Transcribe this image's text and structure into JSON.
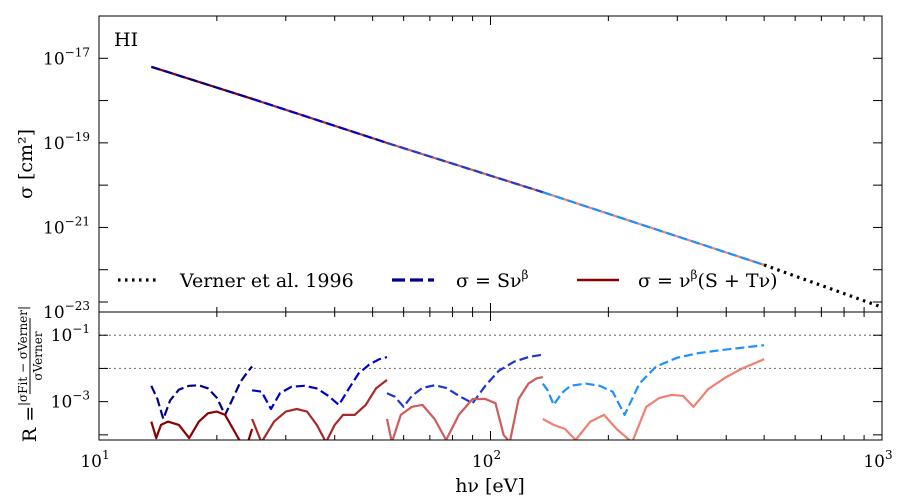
{
  "chart_data": [
    {
      "type": "line",
      "panel": "top",
      "annotation": "HI",
      "ylabel": "σ  [cm²]",
      "xscale": "log",
      "yscale": "log",
      "xlim": [
        10,
        1000
      ],
      "ylim": [
        1e-23,
        1e-16
      ],
      "yticks": [
        {
          "base": "10",
          "exp": "−17",
          "value": 1e-17
        },
        {
          "base": "10",
          "exp": "−19",
          "value": 1e-19
        },
        {
          "base": "10",
          "exp": "−21",
          "value": 1e-21
        },
        {
          "base": "10",
          "exp": "−23",
          "value": 1e-23
        }
      ],
      "legend": [
        {
          "label": "Verner et al. 1996",
          "style": "dotted",
          "color": "#000000"
        },
        {
          "label": "σ = Sν",
          "sup": "β",
          "style": "dashed",
          "color": "#00008b"
        },
        {
          "label": "σ = ν",
          "sup": "β",
          "rest": "(S + Tν)",
          "style": "solid",
          "color": "#8b0000"
        }
      ],
      "series": [
        {
          "name": "Verner et al. 1996",
          "style": "dotted",
          "color": "#000000",
          "x": [
            500,
            1000
          ],
          "y": [
            1.3e-22,
            1.3e-23
          ]
        },
        {
          "name": "fit 1 dashed",
          "style": "dashed",
          "color": "#00008b",
          "x": [
            13.6,
            24.6
          ],
          "y": [
            6.3e-18,
            1.1e-18
          ]
        },
        {
          "name": "fit 2 dashed",
          "style": "dashed",
          "color": "#0000cd",
          "x": [
            24.6,
            54.4
          ],
          "y": [
            1.1e-18,
            1e-19
          ]
        },
        {
          "name": "fit 3 dashed",
          "style": "dashed",
          "color": "#1e3ccd",
          "x": [
            54.4,
            136
          ],
          "y": [
            1e-19,
            6.8e-21
          ]
        },
        {
          "name": "fit 4 dashed",
          "style": "dashed",
          "color": "#1e90ff",
          "x": [
            136,
            500
          ],
          "y": [
            6.8e-21,
            1.3e-22
          ]
        },
        {
          "name": "fit 1 solid",
          "style": "solid",
          "color": "#8b0000",
          "x": [
            13.6,
            24.6
          ],
          "y": [
            6.3e-18,
            1.1e-18
          ]
        },
        {
          "name": "fit 2 solid",
          "style": "solid",
          "color": "#a52a2a",
          "x": [
            24.6,
            54.4
          ],
          "y": [
            1.1e-18,
            1e-19
          ]
        },
        {
          "name": "fit 3 solid",
          "style": "solid",
          "color": "#cd5c5c",
          "x": [
            54.4,
            136
          ],
          "y": [
            1e-19,
            6.8e-21
          ]
        },
        {
          "name": "fit 4 solid",
          "style": "solid",
          "color": "#f08070",
          "x": [
            136,
            500
          ],
          "y": [
            6.8e-21,
            1.3e-22
          ]
        }
      ]
    },
    {
      "type": "line",
      "panel": "bottom",
      "ylabel_pre": "R = ",
      "ylabel_num": "|σFit − σVerner|",
      "ylabel_den": "σVerner",
      "xlabel": "hν  [eV]",
      "xscale": "log",
      "yscale": "log",
      "xlim": [
        10,
        1000
      ],
      "ylim": [
        7e-05,
        0.5
      ],
      "xticks": [
        {
          "base": "10",
          "exp": "1",
          "value": 10
        },
        {
          "base": "10",
          "exp": "2",
          "value": 100
        },
        {
          "base": "10",
          "exp": "3",
          "value": 1000
        }
      ],
      "yticks": [
        {
          "base": "10",
          "exp": "−1",
          "value": 0.1
        },
        {
          "base": "10",
          "exp": "−3",
          "value": 0.001
        }
      ],
      "hlines": [
        0.1,
        0.01
      ],
      "series": [
        {
          "name": "residual 1 dashed",
          "style": "dashed",
          "color": "#00008b",
          "x": [
            13.6,
            14.1,
            14.6,
            15.2,
            16.0,
            17.0,
            18.0,
            19.0,
            20.0,
            21.0,
            22.0,
            23.0,
            24.0,
            24.6
          ],
          "y": [
            0.003,
            0.0012,
            0.0003,
            0.0011,
            0.0023,
            0.003,
            0.0031,
            0.0025,
            0.0013,
            0.0004,
            0.0013,
            0.004,
            0.008,
            0.0115
          ]
        },
        {
          "name": "residual 2 dashed",
          "style": "dashed",
          "color": "#0000cd",
          "x": [
            24.6,
            26.0,
            27.5,
            29.0,
            31.0,
            33.5,
            36.0,
            38.5,
            41.0,
            43.5,
            46.0,
            49.0,
            52.0,
            54.4
          ],
          "y": [
            0.0022,
            0.002,
            0.0006,
            0.0018,
            0.0028,
            0.003,
            0.0025,
            0.0015,
            0.0008,
            0.0025,
            0.007,
            0.013,
            0.019,
            0.022
          ]
        },
        {
          "name": "residual 3 dashed",
          "style": "dashed",
          "color": "#1a36d0",
          "x": [
            54.4,
            57,
            60,
            63,
            67,
            72,
            77,
            83,
            90,
            97,
            105,
            115,
            125,
            136
          ],
          "y": [
            0.0018,
            0.0014,
            0.0007,
            0.0015,
            0.0026,
            0.0031,
            0.0026,
            0.0015,
            0.0009,
            0.003,
            0.0085,
            0.016,
            0.022,
            0.026
          ]
        },
        {
          "name": "residual 4 dashed",
          "style": "dashed",
          "color": "#1e90ff",
          "x": [
            136,
            140,
            145,
            152,
            160,
            175,
            190,
            205,
            220,
            240,
            265,
            300,
            340,
            390,
            440,
            500
          ],
          "y": [
            0.0035,
            0.0022,
            0.0008,
            0.0018,
            0.003,
            0.0035,
            0.003,
            0.002,
            0.0004,
            0.0035,
            0.0115,
            0.021,
            0.029,
            0.036,
            0.042,
            0.05
          ]
        },
        {
          "name": "residual 1 solid",
          "style": "solid",
          "color": "#8b0000",
          "x": [
            13.6,
            14.0,
            14.4,
            15.0,
            16.0,
            17.0,
            18.0,
            19.0,
            20.0,
            21.0,
            22.0,
            23.0,
            24.0,
            24.6
          ],
          "y": [
            0.00025,
            8e-05,
            0.0002,
            0.00025,
            0.0002,
            8e-05,
            0.00025,
            0.00045,
            0.0005,
            0.0004,
            0.00015,
            6e-05,
            6e-05,
            0.00015
          ]
        },
        {
          "name": "residual 2 solid",
          "style": "solid",
          "color": "#a52a2a",
          "x": [
            24.6,
            26.0,
            28.0,
            30.0,
            32.0,
            34.0,
            36.0,
            38.0,
            40.0,
            42.0,
            45.0,
            48.0,
            51.0,
            54.4
          ],
          "y": [
            0.0003,
            6e-05,
            0.00025,
            0.0005,
            0.0006,
            0.0005,
            0.0002,
            6e-05,
            0.0002,
            0.0004,
            0.0004,
            0.0008,
            0.0025,
            0.0045
          ]
        },
        {
          "name": "residual 3 solid",
          "style": "solid",
          "color": "#cd5c5c",
          "x": [
            54.4,
            56,
            59,
            63,
            67,
            72,
            77,
            83,
            90,
            97,
            103,
            108,
            112,
            118,
            125,
            131,
            136
          ],
          "y": [
            0.0003,
            6e-05,
            0.0004,
            0.0007,
            0.0008,
            0.0003,
            7e-05,
            0.0004,
            0.0012,
            0.0012,
            0.0009,
            0.0001,
            6e-05,
            0.0012,
            0.0035,
            0.005,
            0.0055
          ]
        },
        {
          "name": "residual 4 solid",
          "style": "solid",
          "color": "#f08070",
          "x": [
            136,
            145,
            155,
            165,
            180,
            195,
            210,
            230,
            250,
            270,
            290,
            310,
            330,
            360,
            400,
            440,
            500
          ],
          "y": [
            0.0003,
            0.0002,
            0.00015,
            7e-05,
            0.00025,
            0.0004,
            0.00015,
            6e-05,
            0.0007,
            0.0013,
            0.0016,
            0.0015,
            0.0007,
            0.0024,
            0.0055,
            0.01,
            0.019
          ]
        }
      ]
    }
  ]
}
